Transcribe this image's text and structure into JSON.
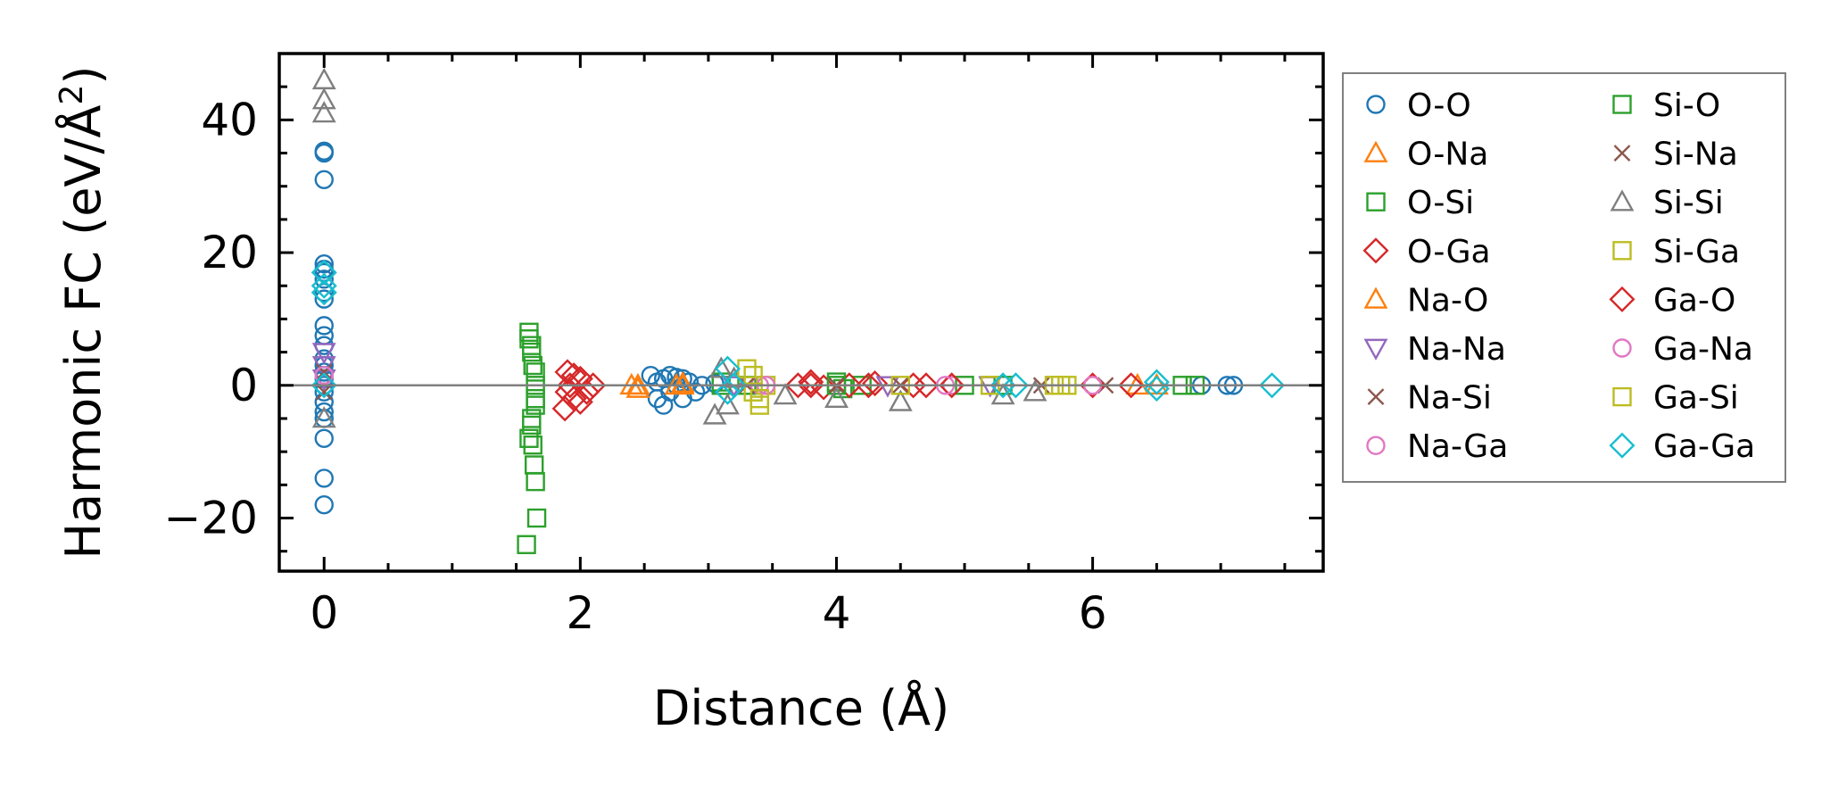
{
  "chart_data": {
    "type": "scatter",
    "xlabel": "Distance (Å)",
    "ylabel_main": "Harmonic FC (eV/Å",
    "ylabel_sup": "2",
    "ylabel_close": ")",
    "xlim": [
      -0.35,
      7.8
    ],
    "ylim": [
      -28,
      50
    ],
    "xticks": [
      0,
      2,
      4,
      6
    ],
    "xtick_labels": [
      "0",
      "2",
      "4",
      "6"
    ],
    "yticks": [
      -20,
      0,
      20,
      40
    ],
    "ytick_labels": [
      "−20",
      "0",
      "20",
      "40"
    ],
    "zero_line": true,
    "grid": false,
    "legend_position": "outside-right",
    "series": [
      {
        "name": "O-O",
        "marker": "circle",
        "color": "#1f77b4",
        "points": [
          [
            0,
            35
          ],
          [
            0,
            35.3
          ],
          [
            0,
            31
          ],
          [
            0,
            18.3
          ],
          [
            0,
            17.5
          ],
          [
            0,
            17
          ],
          [
            0,
            16
          ],
          [
            0,
            14
          ],
          [
            0,
            13
          ],
          [
            0,
            9
          ],
          [
            0,
            7.5
          ],
          [
            0,
            6
          ],
          [
            0,
            4
          ],
          [
            0,
            3
          ],
          [
            0,
            2
          ],
          [
            0,
            1
          ],
          [
            0,
            0
          ],
          [
            0,
            -1
          ],
          [
            0,
            -2.5
          ],
          [
            0,
            -4
          ],
          [
            0,
            -5
          ],
          [
            0,
            -8
          ],
          [
            0,
            -14
          ],
          [
            0,
            -18
          ],
          [
            2.55,
            1.5
          ],
          [
            2.6,
            0.5
          ],
          [
            2.6,
            -2
          ],
          [
            2.65,
            1
          ],
          [
            2.65,
            -3
          ],
          [
            2.7,
            1.5
          ],
          [
            2.7,
            -1
          ],
          [
            2.75,
            0
          ],
          [
            2.75,
            1.2
          ],
          [
            2.8,
            -2
          ],
          [
            2.8,
            1
          ],
          [
            2.85,
            0.5
          ],
          [
            2.9,
            -1
          ],
          [
            2.95,
            0
          ],
          [
            3.05,
            0.3
          ],
          [
            6.85,
            0
          ],
          [
            7.05,
            0
          ],
          [
            7.1,
            0
          ]
        ]
      },
      {
        "name": "O-Na",
        "marker": "triangle-up",
        "color": "#ff7f0e",
        "points": [
          [
            2.4,
            0
          ],
          [
            2.45,
            -0.5
          ],
          [
            2.75,
            0
          ],
          [
            2.8,
            0
          ],
          [
            6.35,
            0
          ]
        ]
      },
      {
        "name": "O-Si",
        "marker": "square",
        "color": "#2ca02c",
        "points": [
          [
            1.6,
            8
          ],
          [
            1.62,
            6
          ],
          [
            1.65,
            2
          ],
          [
            1.65,
            -2
          ],
          [
            1.62,
            -5
          ],
          [
            1.6,
            -8
          ],
          [
            3.1,
            0
          ],
          [
            3.3,
            0
          ],
          [
            4.0,
            0.5
          ],
          [
            4.05,
            -0.5
          ],
          [
            4.2,
            0
          ],
          [
            5.3,
            0
          ],
          [
            6.8,
            0
          ]
        ]
      },
      {
        "name": "O-Ga",
        "marker": "diamond",
        "color": "#d62728",
        "points": [
          [
            1.9,
            2
          ],
          [
            1.92,
            0
          ],
          [
            1.95,
            -2
          ],
          [
            2.0,
            1
          ],
          [
            2.05,
            -1
          ],
          [
            2.1,
            0
          ],
          [
            3.7,
            0
          ],
          [
            3.8,
            0.5
          ],
          [
            3.9,
            -0.3
          ],
          [
            4.1,
            0
          ],
          [
            4.3,
            0.3
          ],
          [
            4.6,
            0
          ],
          [
            4.7,
            0
          ]
        ]
      },
      {
        "name": "Na-O",
        "marker": "triangle-up",
        "color": "#ff7f0e",
        "points": [
          [
            2.45,
            0
          ],
          [
            2.8,
            0.3
          ],
          [
            6.5,
            0
          ]
        ]
      },
      {
        "name": "Na-Na",
        "marker": "triangle-down",
        "color": "#9467bd",
        "points": [
          [
            0,
            5
          ],
          [
            0,
            3
          ],
          [
            0,
            1
          ],
          [
            3.2,
            0
          ],
          [
            4.4,
            0
          ],
          [
            5.2,
            0
          ]
        ]
      },
      {
        "name": "Na-Si",
        "marker": "x",
        "color": "#8c564b",
        "points": [
          [
            0,
            2
          ],
          [
            0,
            -1
          ],
          [
            3.3,
            0
          ],
          [
            4.0,
            0
          ],
          [
            5.6,
            0
          ]
        ]
      },
      {
        "name": "Na-Ga",
        "marker": "circle",
        "color": "#e377c2",
        "points": [
          [
            0,
            1.5
          ],
          [
            3.4,
            0
          ],
          [
            4.9,
            0
          ],
          [
            6.0,
            0
          ]
        ]
      },
      {
        "name": "Si-O",
        "marker": "square",
        "color": "#2ca02c",
        "points": [
          [
            1.58,
            -24
          ],
          [
            1.6,
            7
          ],
          [
            1.62,
            5
          ],
          [
            1.63,
            3
          ],
          [
            1.65,
            0
          ],
          [
            1.65,
            -3
          ],
          [
            1.62,
            -6
          ],
          [
            1.63,
            -9
          ],
          [
            1.64,
            -12
          ],
          [
            1.65,
            -14.5
          ],
          [
            1.66,
            -20
          ],
          [
            3.1,
            0.5
          ],
          [
            4.0,
            0
          ],
          [
            5.0,
            0
          ],
          [
            6.7,
            0
          ]
        ]
      },
      {
        "name": "Si-Na",
        "marker": "x",
        "color": "#8c564b",
        "points": [
          [
            3.3,
            0
          ],
          [
            4.5,
            0
          ],
          [
            6.1,
            0
          ]
        ]
      },
      {
        "name": "Si-Si",
        "marker": "triangle-up",
        "color": "#7f7f7f",
        "points": [
          [
            0,
            46
          ],
          [
            0,
            43
          ],
          [
            0,
            41
          ],
          [
            0,
            -5
          ],
          [
            3.05,
            -4.5
          ],
          [
            3.1,
            2.5
          ],
          [
            3.15,
            -3
          ],
          [
            3.2,
            1
          ],
          [
            3.6,
            -1.5
          ],
          [
            4.0,
            -2
          ],
          [
            4.5,
            -2.5
          ],
          [
            5.3,
            -1.5
          ],
          [
            5.55,
            -1
          ]
        ]
      },
      {
        "name": "Si-Ga",
        "marker": "square",
        "color": "#bcbd22",
        "points": [
          [
            3.3,
            2.5
          ],
          [
            3.35,
            -1
          ],
          [
            3.4,
            -3
          ],
          [
            3.45,
            0
          ],
          [
            4.5,
            0
          ],
          [
            5.2,
            0
          ],
          [
            5.7,
            0
          ],
          [
            5.8,
            0
          ]
        ]
      },
      {
        "name": "Ga-O",
        "marker": "diamond",
        "color": "#d62728",
        "points": [
          [
            1.88,
            -3.5
          ],
          [
            1.9,
            -1
          ],
          [
            1.95,
            1.5
          ],
          [
            2.0,
            -2.5
          ],
          [
            3.8,
            0
          ],
          [
            4.25,
            0
          ],
          [
            4.9,
            0
          ],
          [
            6.0,
            0
          ],
          [
            6.3,
            0
          ]
        ]
      },
      {
        "name": "Ga-Na",
        "marker": "circle",
        "color": "#e377c2",
        "points": [
          [
            3.45,
            0
          ],
          [
            4.85,
            0
          ],
          [
            6.0,
            0
          ]
        ]
      },
      {
        "name": "Ga-Si",
        "marker": "square",
        "color": "#bcbd22",
        "points": [
          [
            3.35,
            1.5
          ],
          [
            3.4,
            -2
          ],
          [
            5.2,
            0
          ],
          [
            5.75,
            0
          ]
        ]
      },
      {
        "name": "Ga-Ga",
        "marker": "diamond",
        "color": "#17becf",
        "points": [
          [
            0,
            17
          ],
          [
            0,
            15
          ],
          [
            0,
            14
          ],
          [
            0,
            0
          ],
          [
            3.15,
            2.5
          ],
          [
            3.15,
            -1
          ],
          [
            3.2,
            0
          ],
          [
            5.3,
            0
          ],
          [
            5.4,
            0
          ],
          [
            6.5,
            -0.5
          ],
          [
            6.5,
            0.5
          ],
          [
            7.4,
            0
          ]
        ]
      }
    ]
  }
}
